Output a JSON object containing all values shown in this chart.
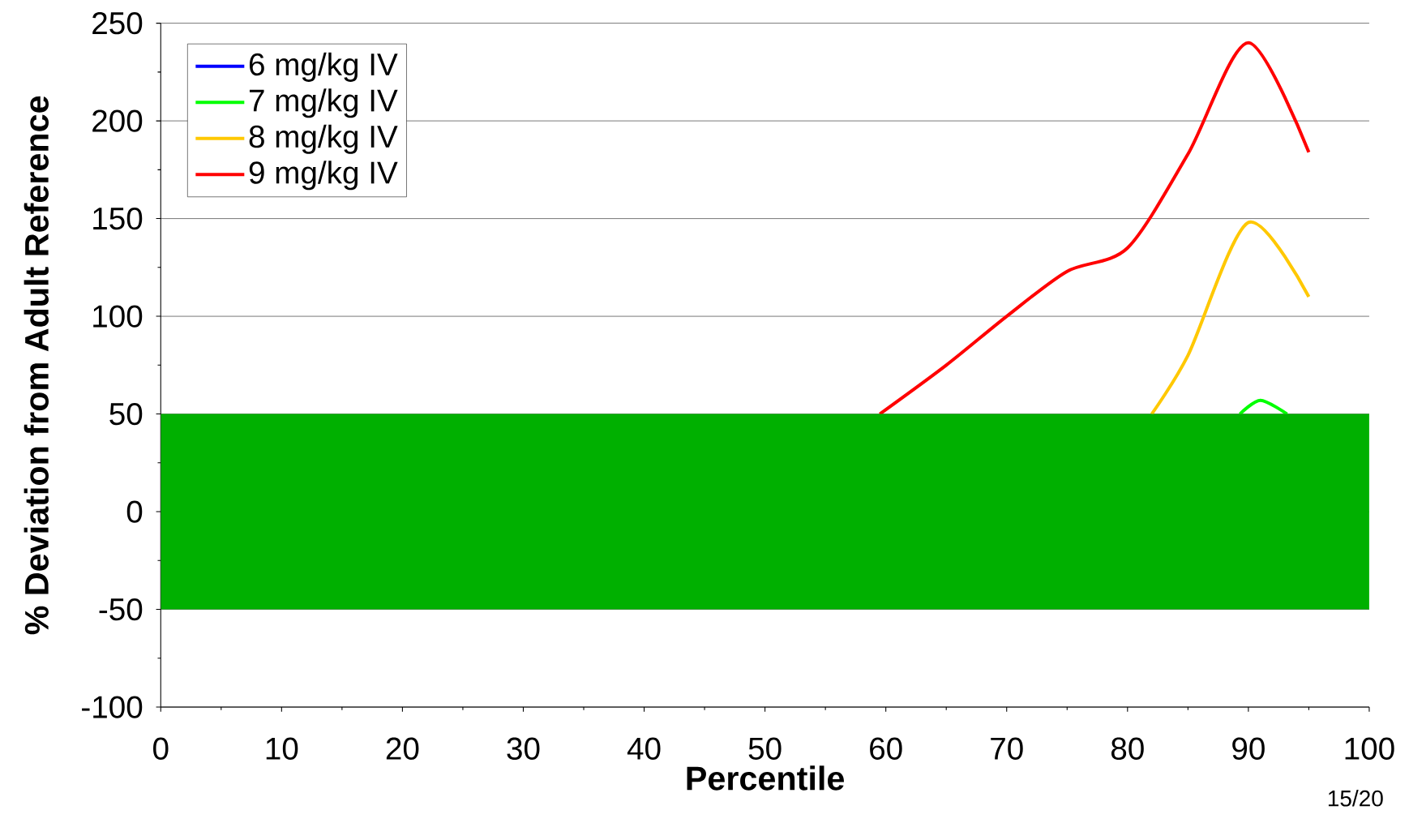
{
  "chart_data": {
    "type": "line",
    "xlabel": "Percentile",
    "ylabel": "% Deviation from Adult Reference",
    "xlim": [
      0,
      100
    ],
    "ylim": [
      -100,
      250
    ],
    "xticks": [
      0,
      10,
      20,
      30,
      40,
      50,
      60,
      70,
      80,
      90,
      100
    ],
    "yticks": [
      -100,
      -50,
      0,
      50,
      100,
      150,
      200,
      250
    ],
    "grid": "y",
    "legend": "top left",
    "marker": "none",
    "line_style": "solid",
    "series": [
      {
        "name": "6 mg/kg IV",
        "color": "#0000ff"
      },
      {
        "name": "7 mg/kg IV",
        "color": "#00ff00",
        "x": [
          89.3,
          91,
          93.2
        ],
        "values": [
          50,
          57,
          50
        ]
      },
      {
        "name": "8 mg/kg IV",
        "color": "#ffc800",
        "x": [
          82,
          85,
          90,
          95
        ],
        "values": [
          50,
          80,
          148,
          110
        ]
      },
      {
        "name": "9 mg/kg IV",
        "color": "#ff0000",
        "x": [
          59.5,
          65,
          70,
          75,
          80,
          85,
          90,
          95
        ],
        "values": [
          50,
          75,
          100,
          123,
          135,
          183,
          240,
          184
        ]
      }
    ],
    "bands": [
      {
        "axis": "y",
        "from": -50,
        "to": 50,
        "color": "#00b000"
      }
    ],
    "annotations": [
      "15/20"
    ]
  }
}
